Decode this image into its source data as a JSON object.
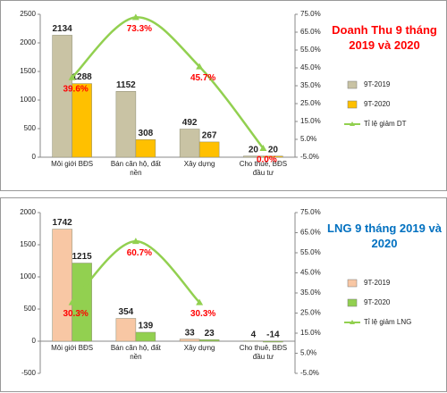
{
  "chart_data": [
    {
      "type": "bar_line",
      "title": "Doanh Thu 9 tháng 2019 và 2020",
      "title_color": "#ff0000",
      "categories": [
        "Môi giới BĐS",
        "Bán căn hộ, đất nền",
        "Xây dựng",
        "Cho thuê, BĐS đầu tư"
      ],
      "series": [
        {
          "name": "9T-2019",
          "color": "#c9c3a4",
          "values": [
            2134,
            1152,
            492,
            20
          ]
        },
        {
          "name": "9T-2020",
          "color": "#ffc000",
          "values": [
            1288,
            308,
            267,
            20
          ]
        },
        {
          "name": "Tỉ lệ giảm DT",
          "color": "#92d050",
          "axis": "y2",
          "values": [
            39.6,
            73.3,
            45.7,
            0.0
          ],
          "value_labels": [
            "39.6%",
            "73.3%",
            "45.7%",
            "0.0%"
          ]
        }
      ],
      "ylim": [
        0,
        2500
      ],
      "yticks": [
        0,
        500,
        1000,
        1500,
        2000,
        2500
      ],
      "y2lim": [
        -5,
        75
      ],
      "y2ticks": [
        {
          "value": -5,
          "label": "-5.0%"
        },
        {
          "value": 5,
          "label": "5.0%"
        },
        {
          "value": 15,
          "label": "15.0%"
        },
        {
          "value": 25,
          "label": "25.0%"
        },
        {
          "value": 35,
          "label": "35.0%"
        },
        {
          "value": 45,
          "label": "45.0%"
        },
        {
          "value": 55,
          "label": "55.0%"
        },
        {
          "value": 65,
          "label": "65.0%"
        },
        {
          "value": 75,
          "label": "75.0%"
        }
      ],
      "legend": "right"
    },
    {
      "type": "bar_line",
      "title": "LNG 9 tháng 2019 và 2020",
      "title_color": "#0070c0",
      "categories": [
        "Môi giới BĐS",
        "Bán căn hộ, đất nền",
        "Xây dựng",
        "Cho thuê, BĐS đầu tư"
      ],
      "series": [
        {
          "name": "9T-2019",
          "color": "#f8c7a4",
          "values": [
            1742,
            354,
            33,
            4
          ]
        },
        {
          "name": "9T-2020",
          "color": "#92d050",
          "values": [
            1215,
            139,
            23,
            -14
          ]
        },
        {
          "name": "Tỉ lệ giảm LNG",
          "color": "#92d050",
          "axis": "y2",
          "values": [
            30.3,
            60.7,
            30.3,
            null
          ],
          "value_labels": [
            "30.3%",
            "60.7%",
            "30.3%",
            null
          ]
        }
      ],
      "ylim": [
        -500,
        2000
      ],
      "yticks": [
        -500,
        0,
        500,
        1000,
        1500,
        2000
      ],
      "y2lim": [
        -5,
        75
      ],
      "y2ticks": [
        {
          "value": -5,
          "label": "-5.0%"
        },
        {
          "value": 5,
          "label": "5.0%"
        },
        {
          "value": 15,
          "label": "15.0%"
        },
        {
          "value": 25,
          "label": "25.0%"
        },
        {
          "value": 35,
          "label": "35.0%"
        },
        {
          "value": 45,
          "label": "45.0%"
        },
        {
          "value": 55,
          "label": "55.0%"
        },
        {
          "value": 65,
          "label": "65.0%"
        },
        {
          "value": 75,
          "label": "75.0%"
        }
      ],
      "legend": "right"
    }
  ]
}
